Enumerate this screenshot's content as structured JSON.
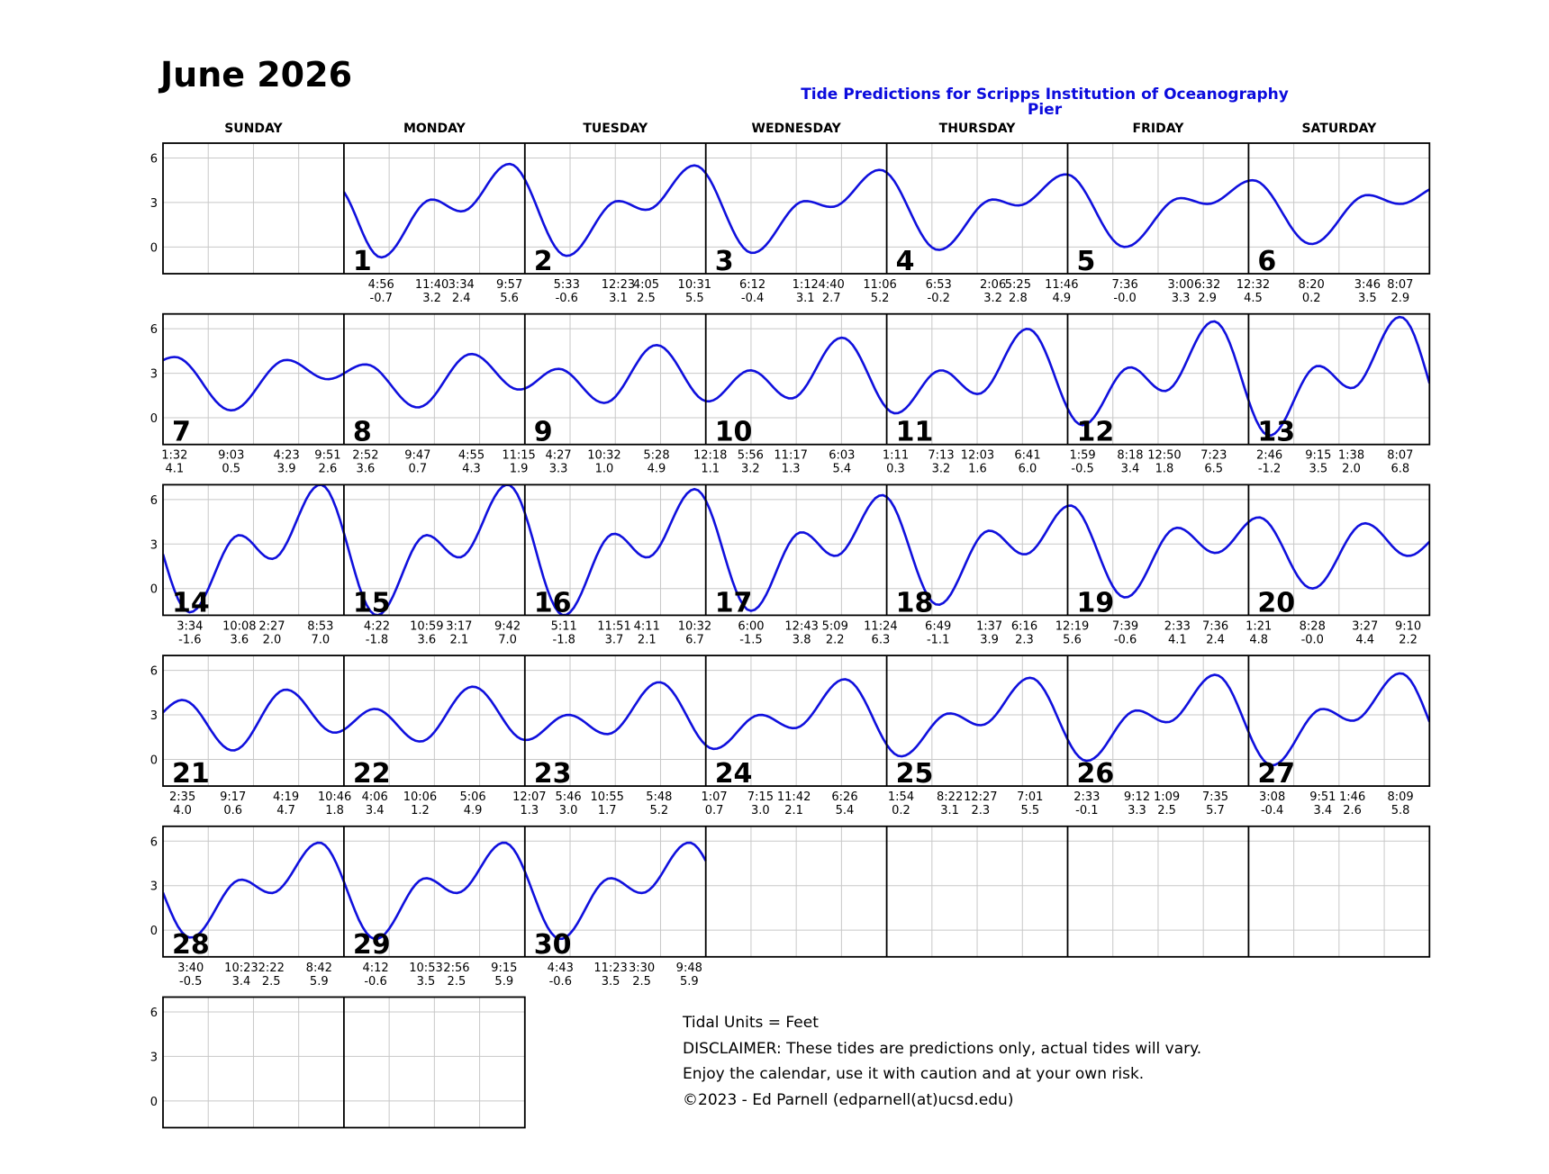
{
  "title": "June 2026",
  "subtitle": "Tide Predictions for Scripps Institution of Oceanography Pier",
  "weekdays": [
    "SUNDAY",
    "MONDAY",
    "TUESDAY",
    "WEDNESDAY",
    "THURSDAY",
    "FRIDAY",
    "SATURDAY"
  ],
  "footer": {
    "units": "Tidal Units = Feet",
    "disclaimer": "DISCLAIMER: These tides are predictions only, actual tides will vary.",
    "enjoy": "Enjoy the calendar, use it with caution and at your own risk.",
    "copyright": "©2023 - Ed Parnell (edparnell(at)ucsd.edu)"
  },
  "colors": {
    "curve": "#1010dd",
    "subtitle": "#0b0bdd",
    "grid": "#c8c8c8",
    "border": "#000000"
  },
  "chart_data": {
    "type": "line",
    "ylim": [
      -1.8,
      7.0
    ],
    "yticks": [
      0,
      3,
      6
    ],
    "first_weekday": 1,
    "blank_week_rows": 1,
    "tides": [
      {
        "day": "1",
        "events": [
          [
            "4:56",
            "-0.7"
          ],
          [
            "11:40",
            "3.2"
          ],
          [
            "3:34",
            "2.4"
          ],
          [
            "9:57",
            "5.6"
          ]
        ]
      },
      {
        "day": "2",
        "events": [
          [
            "5:33",
            "-0.6"
          ],
          [
            "12:23",
            "3.1"
          ],
          [
            "4:05",
            "2.5"
          ],
          [
            "10:31",
            "5.5"
          ]
        ]
      },
      {
        "day": "3",
        "events": [
          [
            "6:12",
            "-0.4"
          ],
          [
            "1:12",
            "3.1"
          ],
          [
            "4:40",
            "2.7"
          ],
          [
            "11:06",
            "5.2"
          ]
        ]
      },
      {
        "day": "4",
        "events": [
          [
            "6:53",
            "-0.2"
          ],
          [
            "2:06",
            "3.2"
          ],
          [
            "5:25",
            "2.8"
          ],
          [
            "11:46",
            "4.9"
          ]
        ]
      },
      {
        "day": "5",
        "events": [
          [
            "7:36",
            "-0.0"
          ],
          [
            "3:00",
            "3.3"
          ],
          [
            "6:32",
            "2.9"
          ]
        ]
      },
      {
        "day": "6",
        "events": [
          [
            "12:32",
            "4.5"
          ],
          [
            "8:20",
            "0.2"
          ],
          [
            "3:46",
            "3.5"
          ],
          [
            "8:07",
            "2.9"
          ]
        ]
      },
      {
        "day": "7",
        "events": [
          [
            "1:32",
            "4.1"
          ],
          [
            "9:03",
            "0.5"
          ],
          [
            "4:23",
            "3.9"
          ],
          [
            "9:51",
            "2.6"
          ]
        ]
      },
      {
        "day": "8",
        "events": [
          [
            "2:52",
            "3.6"
          ],
          [
            "9:47",
            "0.7"
          ],
          [
            "4:55",
            "4.3"
          ],
          [
            "11:15",
            "1.9"
          ]
        ]
      },
      {
        "day": "9",
        "events": [
          [
            "4:27",
            "3.3"
          ],
          [
            "10:32",
            "1.0"
          ],
          [
            "5:28",
            "4.9"
          ]
        ]
      },
      {
        "day": "10",
        "events": [
          [
            "12:18",
            "1.1"
          ],
          [
            "5:56",
            "3.2"
          ],
          [
            "11:17",
            "1.3"
          ],
          [
            "6:03",
            "5.4"
          ]
        ]
      },
      {
        "day": "11",
        "events": [
          [
            "1:11",
            "0.3"
          ],
          [
            "7:13",
            "3.2"
          ],
          [
            "12:03",
            "1.6"
          ],
          [
            "6:41",
            "6.0"
          ]
        ]
      },
      {
        "day": "12",
        "events": [
          [
            "1:59",
            "-0.5"
          ],
          [
            "8:18",
            "3.4"
          ],
          [
            "12:50",
            "1.8"
          ],
          [
            "7:23",
            "6.5"
          ]
        ]
      },
      {
        "day": "13",
        "events": [
          [
            "2:46",
            "-1.2"
          ],
          [
            "9:15",
            "3.5"
          ],
          [
            "1:38",
            "2.0"
          ],
          [
            "8:07",
            "6.8"
          ]
        ]
      },
      {
        "day": "14",
        "events": [
          [
            "3:34",
            "-1.6"
          ],
          [
            "10:08",
            "3.6"
          ],
          [
            "2:27",
            "2.0"
          ],
          [
            "8:53",
            "7.0"
          ]
        ]
      },
      {
        "day": "15",
        "events": [
          [
            "4:22",
            "-1.8"
          ],
          [
            "10:59",
            "3.6"
          ],
          [
            "3:17",
            "2.1"
          ],
          [
            "9:42",
            "7.0"
          ]
        ]
      },
      {
        "day": "16",
        "events": [
          [
            "5:11",
            "-1.8"
          ],
          [
            "11:51",
            "3.7"
          ],
          [
            "4:11",
            "2.1"
          ],
          [
            "10:32",
            "6.7"
          ]
        ]
      },
      {
        "day": "17",
        "events": [
          [
            "6:00",
            "-1.5"
          ],
          [
            "12:43",
            "3.8"
          ],
          [
            "5:09",
            "2.2"
          ],
          [
            "11:24",
            "6.3"
          ]
        ]
      },
      {
        "day": "18",
        "events": [
          [
            "6:49",
            "-1.1"
          ],
          [
            "1:37",
            "3.9"
          ],
          [
            "6:16",
            "2.3"
          ]
        ]
      },
      {
        "day": "19",
        "events": [
          [
            "12:19",
            "5.6"
          ],
          [
            "7:39",
            "-0.6"
          ],
          [
            "2:33",
            "4.1"
          ],
          [
            "7:36",
            "2.4"
          ]
        ]
      },
      {
        "day": "20",
        "events": [
          [
            "1:21",
            "4.8"
          ],
          [
            "8:28",
            "-0.0"
          ],
          [
            "3:27",
            "4.4"
          ],
          [
            "9:10",
            "2.2"
          ]
        ]
      },
      {
        "day": "21",
        "events": [
          [
            "2:35",
            "4.0"
          ],
          [
            "9:17",
            "0.6"
          ],
          [
            "4:19",
            "4.7"
          ],
          [
            "10:46",
            "1.8"
          ]
        ]
      },
      {
        "day": "22",
        "events": [
          [
            "4:06",
            "3.4"
          ],
          [
            "10:06",
            "1.2"
          ],
          [
            "5:06",
            "4.9"
          ]
        ]
      },
      {
        "day": "23",
        "events": [
          [
            "12:07",
            "1.3"
          ],
          [
            "5:46",
            "3.0"
          ],
          [
            "10:55",
            "1.7"
          ],
          [
            "5:48",
            "5.2"
          ]
        ]
      },
      {
        "day": "24",
        "events": [
          [
            "1:07",
            "0.7"
          ],
          [
            "7:15",
            "3.0"
          ],
          [
            "11:42",
            "2.1"
          ],
          [
            "6:26",
            "5.4"
          ]
        ]
      },
      {
        "day": "25",
        "events": [
          [
            "1:54",
            "0.2"
          ],
          [
            "8:22",
            "3.1"
          ],
          [
            "12:27",
            "2.3"
          ],
          [
            "7:01",
            "5.5"
          ]
        ]
      },
      {
        "day": "26",
        "events": [
          [
            "2:33",
            "-0.1"
          ],
          [
            "9:12",
            "3.3"
          ],
          [
            "1:09",
            "2.5"
          ],
          [
            "7:35",
            "5.7"
          ]
        ]
      },
      {
        "day": "27",
        "events": [
          [
            "3:08",
            "-0.4"
          ],
          [
            "9:51",
            "3.4"
          ],
          [
            "1:46",
            "2.6"
          ],
          [
            "8:09",
            "5.8"
          ]
        ]
      },
      {
        "day": "28",
        "events": [
          [
            "3:40",
            "-0.5"
          ],
          [
            "10:23",
            "3.4"
          ],
          [
            "2:22",
            "2.5"
          ],
          [
            "8:42",
            "5.9"
          ]
        ]
      },
      {
        "day": "29",
        "events": [
          [
            "4:12",
            "-0.6"
          ],
          [
            "10:53",
            "3.5"
          ],
          [
            "2:56",
            "2.5"
          ],
          [
            "9:15",
            "5.9"
          ]
        ]
      },
      {
        "day": "30",
        "events": [
          [
            "4:43",
            "-0.6"
          ],
          [
            "11:23",
            "3.5"
          ],
          [
            "3:30",
            "2.5"
          ],
          [
            "9:48",
            "5.9"
          ]
        ]
      }
    ]
  }
}
